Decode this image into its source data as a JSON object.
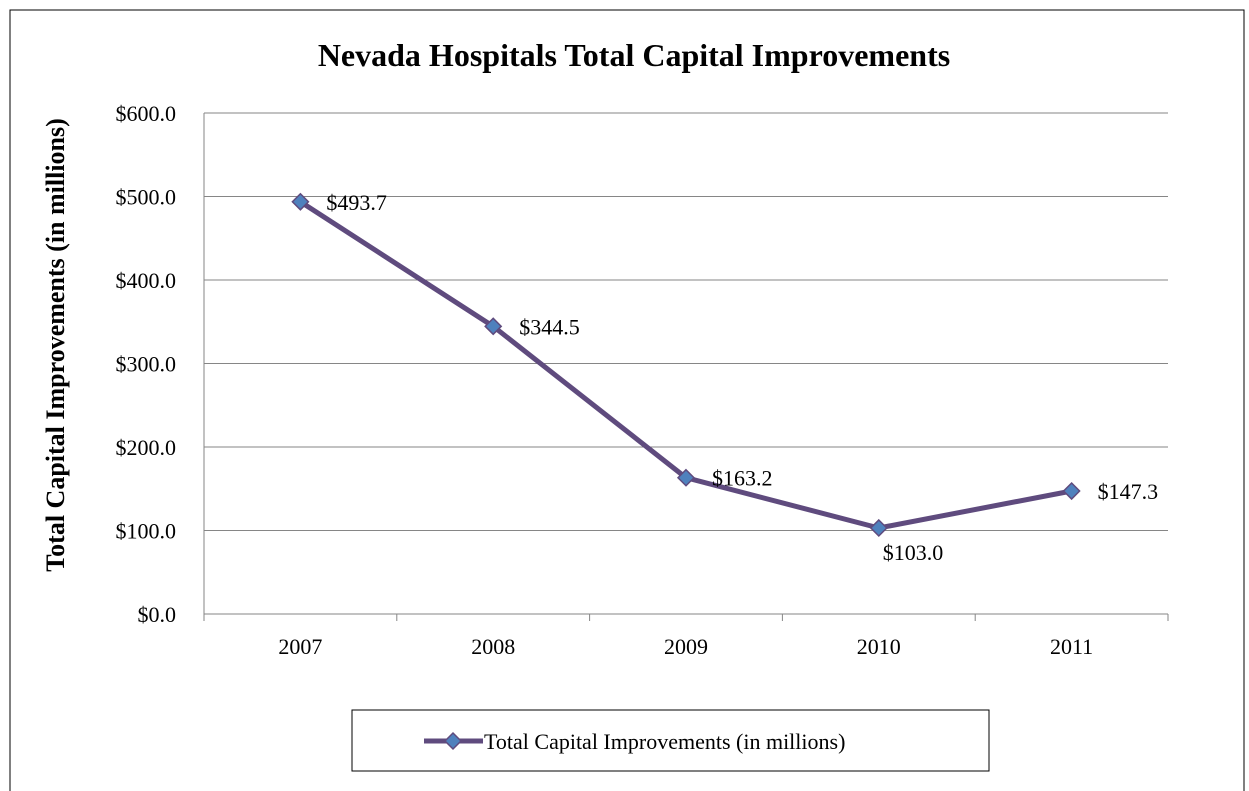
{
  "chart_data": {
    "type": "line",
    "title": "Nevada Hospitals Total Capital Improvements",
    "xlabel": "",
    "ylabel": "Total Capital Improvements (in millions)",
    "categories": [
      "2007",
      "2008",
      "2009",
      "2010",
      "2011"
    ],
    "series": [
      {
        "name": "Total Capital Improvements (in millions)",
        "values": [
          493.7,
          344.5,
          163.2,
          103.0,
          147.3
        ],
        "data_labels": [
          "$493.7",
          "$344.5",
          "$163.2",
          "$103.0",
          "$147.3"
        ]
      }
    ],
    "y_ticks": [
      "$0.0",
      "$100.0",
      "$200.0",
      "$300.0",
      "$400.0",
      "$500.0",
      "$600.0"
    ],
    "ylim": [
      0,
      600
    ],
    "grid": "horizontal",
    "legend": "bottom",
    "colors": {
      "line": "#5f4b7e",
      "marker_fill": "#4f81bd",
      "marker_stroke": "#5f4b7e",
      "grid": "#868686",
      "border": "#000000"
    }
  }
}
